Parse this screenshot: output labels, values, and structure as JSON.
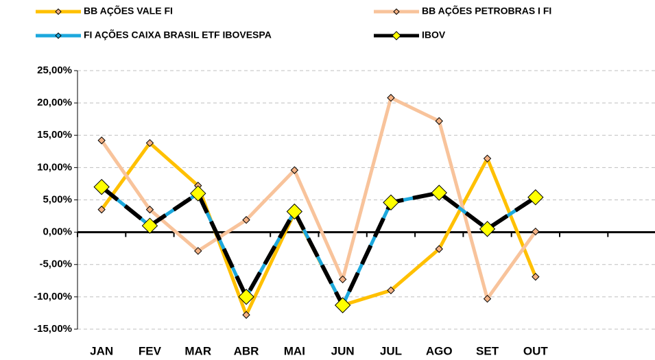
{
  "chart_data": {
    "type": "line",
    "categories": [
      "JAN",
      "FEV",
      "MAR",
      "ABR",
      "MAI",
      "JUN",
      "JUL",
      "AGO",
      "SET",
      "OUT",
      null,
      null
    ],
    "series": [
      {
        "name": "BB AÇÕES VALE FI",
        "color": "#FFC000",
        "marker_color": "#F4B183",
        "values": [
          3.5,
          13.8,
          7.2,
          -12.8,
          3.0,
          -11.3,
          -9.0,
          -2.6,
          11.4,
          -6.9,
          null,
          null
        ]
      },
      {
        "name": "BB AÇÕES PETROBRAS I FI",
        "color": "#F8C39B",
        "marker_color": "#F4B183",
        "values": [
          14.2,
          3.5,
          -2.9,
          1.9,
          9.6,
          -7.3,
          20.8,
          17.2,
          -10.3,
          0.1,
          null,
          null
        ]
      },
      {
        "name": "FI AÇÕES CAIXA BRASIL ETF IBOVESPA",
        "color": "#1CA8DD",
        "marker_color": "#1CA8DD",
        "values": [
          7.0,
          1.0,
          6.0,
          -10.0,
          3.2,
          -11.3,
          4.6,
          6.1,
          0.5,
          5.4,
          null,
          null
        ]
      },
      {
        "name": "IBOV",
        "color": "#000000",
        "marker_color": "#FFFF00",
        "values": [
          7.0,
          1.0,
          6.0,
          -10.0,
          3.2,
          -11.3,
          4.6,
          6.1,
          0.5,
          5.4,
          null,
          null
        ]
      }
    ],
    "ylim": [
      -15,
      25
    ],
    "yticks": [
      {
        "value": -15,
        "label": "-15,00%"
      },
      {
        "value": -10,
        "label": "-10,00%"
      },
      {
        "value": -5,
        "label": "-5,00%"
      },
      {
        "value": 0,
        "label": "0,00%"
      },
      {
        "value": 5,
        "label": "5,00%"
      },
      {
        "value": 10,
        "label": "10,00%"
      },
      {
        "value": 15,
        "label": "15,00%"
      },
      {
        "value": 20,
        "label": "20,00%"
      },
      {
        "value": 25,
        "label": "25,00%"
      }
    ],
    "grid": true,
    "legend": "top"
  }
}
